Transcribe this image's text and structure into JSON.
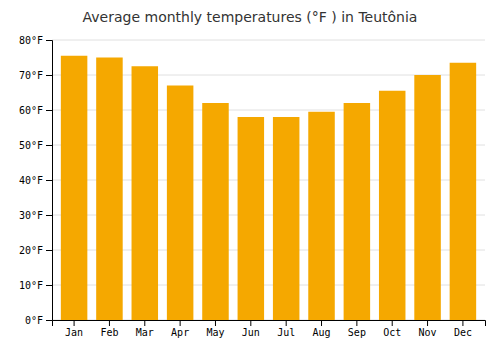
{
  "chart_data": {
    "type": "bar",
    "title": "Average monthly temperatures (°F ) in Teutônia",
    "categories": [
      "Jan",
      "Feb",
      "Mar",
      "Apr",
      "May",
      "Jun",
      "Jul",
      "Aug",
      "Sep",
      "Oct",
      "Nov",
      "Dec"
    ],
    "values": [
      75.5,
      75.0,
      72.5,
      67.0,
      62.0,
      58.0,
      58.0,
      59.5,
      62.0,
      65.5,
      70.0,
      73.5
    ],
    "color": "#F5A800",
    "ylim": [
      0,
      80
    ],
    "yticks": [
      {
        "value": 0,
        "label": "0°F"
      },
      {
        "value": 10,
        "label": "10°F"
      },
      {
        "value": 20,
        "label": "20°F"
      },
      {
        "value": 30,
        "label": "30°F"
      },
      {
        "value": 40,
        "label": "40°F"
      },
      {
        "value": 50,
        "label": "50°F"
      },
      {
        "value": 60,
        "label": "60°F"
      },
      {
        "value": 70,
        "label": "70°F"
      },
      {
        "value": 80,
        "label": "80°F"
      }
    ],
    "grid": true
  }
}
